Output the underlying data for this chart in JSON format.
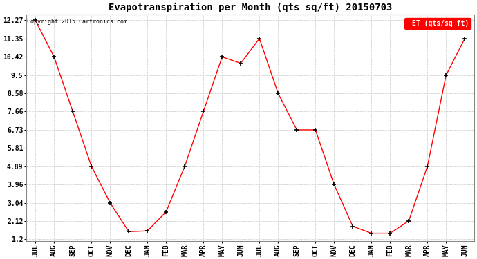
{
  "title": "Evapotranspiration per Month (qts sq/ft) 20150703",
  "x_labels": [
    "JUL",
    "AUG",
    "SEP",
    "OCT",
    "NOV",
    "DEC",
    "JAN",
    "FEB",
    "MAR",
    "APR",
    "MAY",
    "JUN",
    "JUL",
    "AUG",
    "SEP",
    "OCT",
    "NOV",
    "DEC",
    "JAN",
    "FEB",
    "MAR",
    "APR",
    "MAY",
    "JUN"
  ],
  "y_values": [
    12.27,
    10.42,
    7.66,
    4.89,
    3.04,
    1.58,
    1.62,
    2.58,
    4.89,
    7.66,
    10.42,
    10.1,
    11.35,
    8.58,
    6.73,
    6.73,
    3.96,
    1.85,
    1.5,
    1.5,
    2.12,
    4.89,
    9.5,
    11.35
  ],
  "line_color": "red",
  "marker": "+",
  "marker_color": "black",
  "y_ticks": [
    1.2,
    2.12,
    3.04,
    3.96,
    4.89,
    5.81,
    6.73,
    7.66,
    8.58,
    9.5,
    10.42,
    11.35,
    12.27
  ],
  "ylim_min": 1.2,
  "ylim_max": 12.27,
  "bg_color": "#ffffff",
  "grid_color": "#bbbbbb",
  "copyright_text": "Copyright 2015 Cartronics.com",
  "legend_text": "ET (qts/sq ft)",
  "legend_bg": "red",
  "legend_fg": "white",
  "title_fontsize": 10,
  "tick_fontsize": 7,
  "copyright_fontsize": 6
}
